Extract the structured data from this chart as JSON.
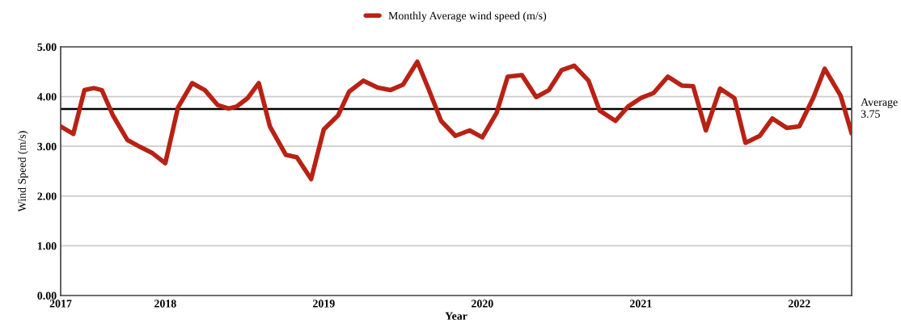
{
  "chart_data": {
    "type": "line",
    "xlabel": "Year",
    "ylabel": "Wind Speed (m/s)",
    "x": [
      2017.34,
      2017.42,
      2017.49,
      2017.55,
      2017.6,
      2017.67,
      2017.76,
      2017.84,
      2017.92,
      2018.0,
      2018.08,
      2018.17,
      2018.25,
      2018.33,
      2018.4,
      2018.45,
      2018.52,
      2018.59,
      2018.66,
      2018.76,
      2018.83,
      2018.92,
      2019.0,
      2019.09,
      2019.16,
      2019.25,
      2019.34,
      2019.42,
      2019.5,
      2019.59,
      2019.66,
      2019.74,
      2019.83,
      2019.92,
      2020.0,
      2020.09,
      2020.16,
      2020.25,
      2020.34,
      2020.42,
      2020.5,
      2020.58,
      2020.67,
      2020.74,
      2020.84,
      2020.92,
      2021.0,
      2021.08,
      2021.17,
      2021.26,
      2021.33,
      2021.41,
      2021.5,
      2021.59,
      2021.66,
      2021.75,
      2021.83,
      2021.92,
      2022.0,
      2022.09,
      2022.16,
      2022.26,
      2022.33
    ],
    "series": [
      {
        "name": "Monthly Average wind speed (m/s)",
        "color": "#b82214",
        "values": [
          3.4,
          3.25,
          4.13,
          4.17,
          4.13,
          3.62,
          3.13,
          2.99,
          2.86,
          2.66,
          3.78,
          4.27,
          4.13,
          3.83,
          3.76,
          3.8,
          3.97,
          4.27,
          3.4,
          2.83,
          2.78,
          2.34,
          3.34,
          3.62,
          4.1,
          4.32,
          4.18,
          4.13,
          4.24,
          4.7,
          4.16,
          3.51,
          3.21,
          3.32,
          3.18,
          3.67,
          4.4,
          4.43,
          3.99,
          4.13,
          4.53,
          4.62,
          4.32,
          3.72,
          3.51,
          3.8,
          3.97,
          4.07,
          4.4,
          4.22,
          4.21,
          3.32,
          4.16,
          3.97,
          3.07,
          3.21,
          3.56,
          3.37,
          3.4,
          3.99,
          4.56,
          4.02,
          3.26
        ]
      }
    ],
    "xlim": [
      2017.34,
      2022.33
    ],
    "xticks": [
      {
        "value": 2017.34,
        "label": "2017"
      },
      {
        "value": 2018,
        "label": "2018"
      },
      {
        "value": 2019,
        "label": "2019"
      },
      {
        "value": 2020,
        "label": "2020"
      },
      {
        "value": 2021,
        "label": "2021"
      },
      {
        "value": 2022,
        "label": "2022"
      }
    ],
    "ylim": [
      0,
      5
    ],
    "yticks": [
      {
        "value": 0,
        "label": "0.00"
      },
      {
        "value": 1,
        "label": "1.00"
      },
      {
        "value": 2,
        "label": "2.00"
      },
      {
        "value": 3,
        "label": "3.00"
      },
      {
        "value": 4,
        "label": "4.00"
      },
      {
        "value": 5,
        "label": "5.00"
      }
    ],
    "ref_lines": [
      {
        "axis": "y",
        "value": 3.75,
        "label": "Average\n3.75",
        "color": "#000000",
        "line_style": "solid"
      }
    ],
    "grid": "y",
    "legend": "top",
    "marker": "none",
    "line_style": "solid"
  }
}
